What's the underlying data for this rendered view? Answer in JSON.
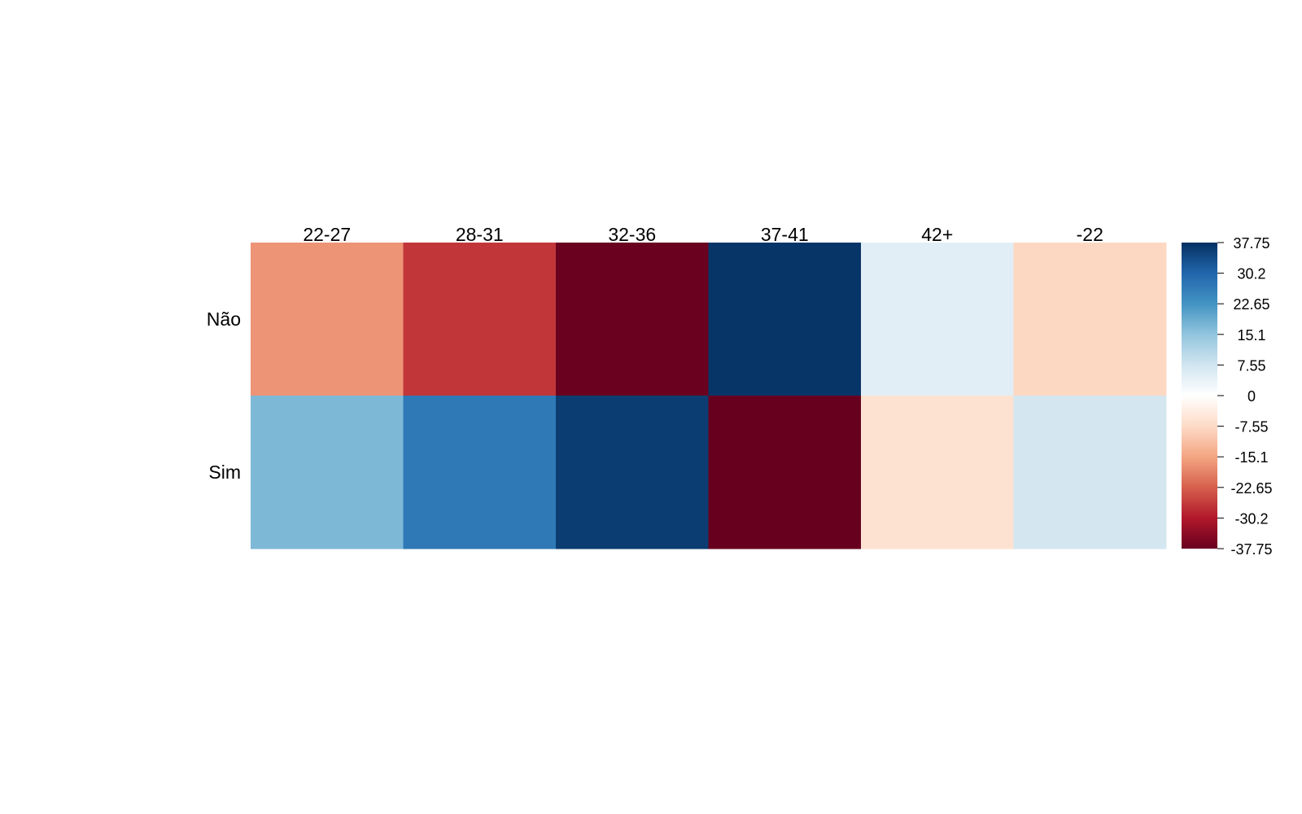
{
  "chart_data": {
    "type": "heatmap",
    "title": "",
    "xlabel": "",
    "ylabel": "",
    "columns": [
      "22-27",
      "28-31",
      "32-36",
      "37-41",
      "42+",
      "-22"
    ],
    "rows": [
      "Não",
      "Sim"
    ],
    "values": [
      [
        -17,
        -27,
        -37.5,
        37,
        5,
        -8
      ],
      [
        17,
        27,
        36,
        -37.75,
        -6,
        7
      ]
    ],
    "color_scale": {
      "min": -37.75,
      "max": 37.75,
      "ticks": [
        "37.75",
        "30.2",
        "22.65",
        "15.1",
        "7.55",
        "0",
        "-7.55",
        "-15.1",
        "-22.65",
        "-30.2",
        "-37.75"
      ],
      "palette": "RdBu",
      "colors": [
        "#67001F",
        "#B2182B",
        "#D6604D",
        "#F4A582",
        "#FDDBC7",
        "#FFFFFF",
        "#D1E5F0",
        "#92C5DE",
        "#4393C3",
        "#2166AC",
        "#053061"
      ]
    },
    "legend": "right",
    "grid": false
  }
}
